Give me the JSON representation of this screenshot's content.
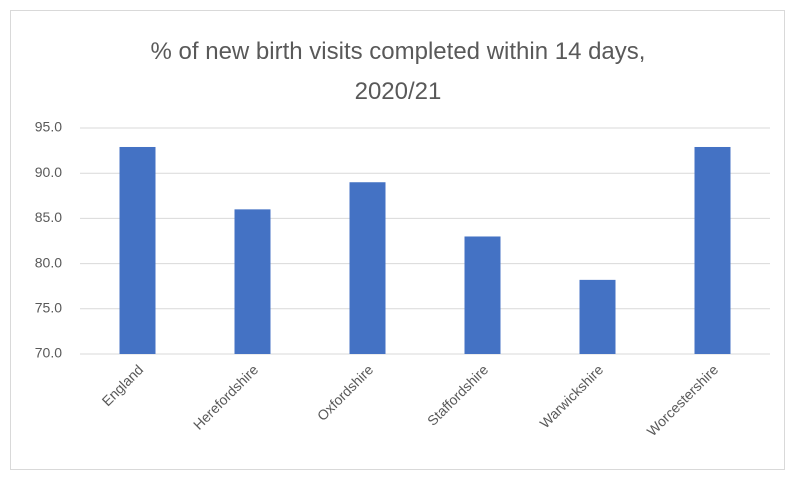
{
  "chart_data": {
    "type": "bar",
    "title": "% of new birth visits completed within 14 days, 2020/21",
    "categories": [
      "England",
      "Herefordshire",
      "Oxfordshire",
      "Staffordshire",
      "Warwickshire",
      "Worcestershire"
    ],
    "values": [
      92.9,
      86.0,
      89.0,
      83.0,
      78.2,
      92.9
    ],
    "color": "#4472c4",
    "ylim": [
      70,
      95
    ],
    "yticks": [
      {
        "value": 70,
        "label": "70.0"
      },
      {
        "value": 75,
        "label": "75.0"
      },
      {
        "value": 80,
        "label": "80.0"
      },
      {
        "value": 85,
        "label": "85.0"
      },
      {
        "value": 90,
        "label": "90.0"
      },
      {
        "value": 95,
        "label": "95.0"
      }
    ],
    "grid": true
  }
}
